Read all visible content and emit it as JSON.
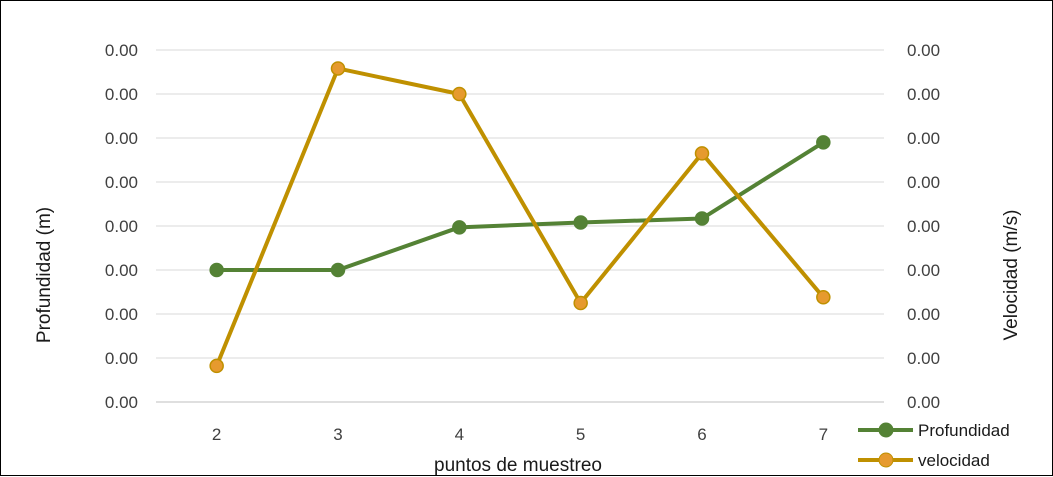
{
  "chart_data": {
    "type": "line",
    "title": "",
    "xlabel": "puntos de muestreo",
    "ylabel": "Profundidad (m)",
    "y2label": "Velocidad (m/s)",
    "categories": [
      "2",
      "3",
      "4",
      "5",
      "6",
      "7"
    ],
    "left_tick_labels": [
      "0.00",
      "0.00",
      "0.00",
      "0.00",
      "0.00",
      "0.00",
      "0.00",
      "0.00",
      "0.00"
    ],
    "right_tick_labels": [
      "0.00",
      "0.00",
      "0.00",
      "0.00",
      "0.00",
      "0.00",
      "0.00",
      "0.00",
      "0.00"
    ],
    "ylim": [
      0,
      8
    ],
    "y2lim": [
      0,
      8
    ],
    "grid": true,
    "legend_position": "bottom-right",
    "series": [
      {
        "name": "Profundidad",
        "axis": "left",
        "color": "#548235",
        "values": [
          3.0,
          3.0,
          3.97,
          4.08,
          4.17,
          5.9
        ]
      },
      {
        "name": "velocidad",
        "axis": "right",
        "color": "#BF9000",
        "marker_color": "#E69A2E",
        "values": [
          0.82,
          7.58,
          7.0,
          2.25,
          5.65,
          2.38
        ]
      }
    ]
  }
}
